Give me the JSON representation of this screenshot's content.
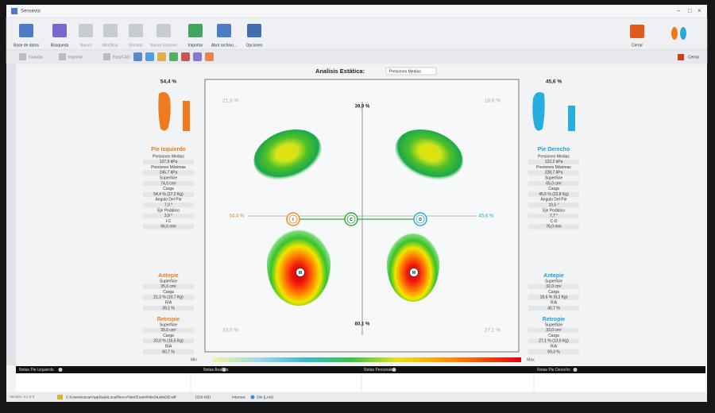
{
  "window": {
    "title": "Sensevoi"
  },
  "toolbar": {
    "buttons": [
      "Base de datos",
      "Búsqueda",
      "Nuevo",
      "Modificar",
      "Eliminar",
      "Nuevo Examen",
      "Importar",
      "Abrir archivo...",
      "Opciones"
    ],
    "close": "Cerrar"
  },
  "subtoolbar": {
    "buttons": [
      "Guardar",
      "Imprimir",
      "EasyCAD"
    ],
    "close": "Cerrar"
  },
  "analysis": {
    "label": "Analisis Estática:",
    "mode": "Presiones Medias"
  },
  "left": {
    "load": "54,4 %",
    "title": "Pie Izquierdo",
    "metrics": [
      {
        "label": "Presiones Medias",
        "value": "127,9 kPa"
      },
      {
        "label": "Presiones Máximas",
        "value": "245,7 kPa"
      },
      {
        "label": "Superficie",
        "value": "74,0 cm²"
      },
      {
        "label": "Carga",
        "value": "54,4 % (27,2 Kg)"
      },
      {
        "label": "Angulo Del Pie",
        "value": "7,0 °"
      },
      {
        "label": "Eje Podálico",
        "value": "3,9 °"
      },
      {
        "label": "I-C",
        "value": "66,6 mm"
      }
    ],
    "forefoot": {
      "title": "Antepie",
      "metrics": [
        {
          "label": "Superficie",
          "value": "35,0 cm²"
        },
        {
          "label": "Carga",
          "value": "21,3 % (10,7 Kg)"
        },
        {
          "label": "R/A",
          "value": "39,1 %"
        }
      ]
    },
    "rearfoot": {
      "title": "Retropie",
      "metrics": [
        {
          "label": "Superficie",
          "value": "39,0 cm²"
        },
        {
          "label": "Carga",
          "value": "33,0 % (16,5 Kg)"
        },
        {
          "label": "R/A",
          "value": "60,7 %"
        }
      ]
    }
  },
  "right": {
    "load": "45,6 %",
    "title": "Pie Derecho",
    "metrics": [
      {
        "label": "Presiones Medias",
        "value": "122,2 kPa"
      },
      {
        "label": "Presiones Máximas",
        "value": "228,7 kPa"
      },
      {
        "label": "Superficie",
        "value": "65,0 cm²"
      },
      {
        "label": "Carga",
        "value": "45,6 % (22,8 Kg)"
      },
      {
        "label": "Angulo Del Pie",
        "value": "10,5 °"
      },
      {
        "label": "Eje Podálico",
        "value": "7,7 °"
      },
      {
        "label": "C-D",
        "value": "76,0 mm"
      }
    ],
    "forefoot": {
      "title": "Antepie",
      "metrics": [
        {
          "label": "Superficie",
          "value": "32,0 cm²"
        },
        {
          "label": "Carga",
          "value": "18,6 % (9,3 Kg)"
        },
        {
          "label": "R/A",
          "value": "40,7 %"
        }
      ]
    },
    "rearfoot": {
      "title": "Retropie",
      "metrics": [
        {
          "label": "Superficie",
          "value": "33,0 cm²"
        },
        {
          "label": "Carga",
          "value": "27,1 % (13,5 Kg)"
        },
        {
          "label": "R/A",
          "value": "59,3 %"
        }
      ]
    }
  },
  "plot": {
    "top_left": "21,3 %",
    "top_right": "18,6 %",
    "bottom_left": "33,0 %",
    "bottom_right": "27,1 %",
    "top": "39,9 %",
    "bottom": "60,1 %",
    "left": "54,4 %",
    "right": "45,6 %",
    "markers": [
      "I",
      "C",
      "D"
    ],
    "peaks": [
      "M",
      "M"
    ]
  },
  "scale": {
    "min": "Min",
    "max": "Max"
  },
  "notes": [
    "Notas Pie Izquierdo",
    "Notas Analisis",
    "Notas Personales",
    "Notas Pie Derecho"
  ],
  "status": {
    "version": "Versión: 3.1.0.0",
    "path": "C:\\Users\\oscar\\AppData\\Local\\Neo-Plate\\Exam\\NbxStudioDB.sdf",
    "size": "(320 KB)",
    "internet": "Internet:",
    "connection": "ON (LAN)"
  }
}
